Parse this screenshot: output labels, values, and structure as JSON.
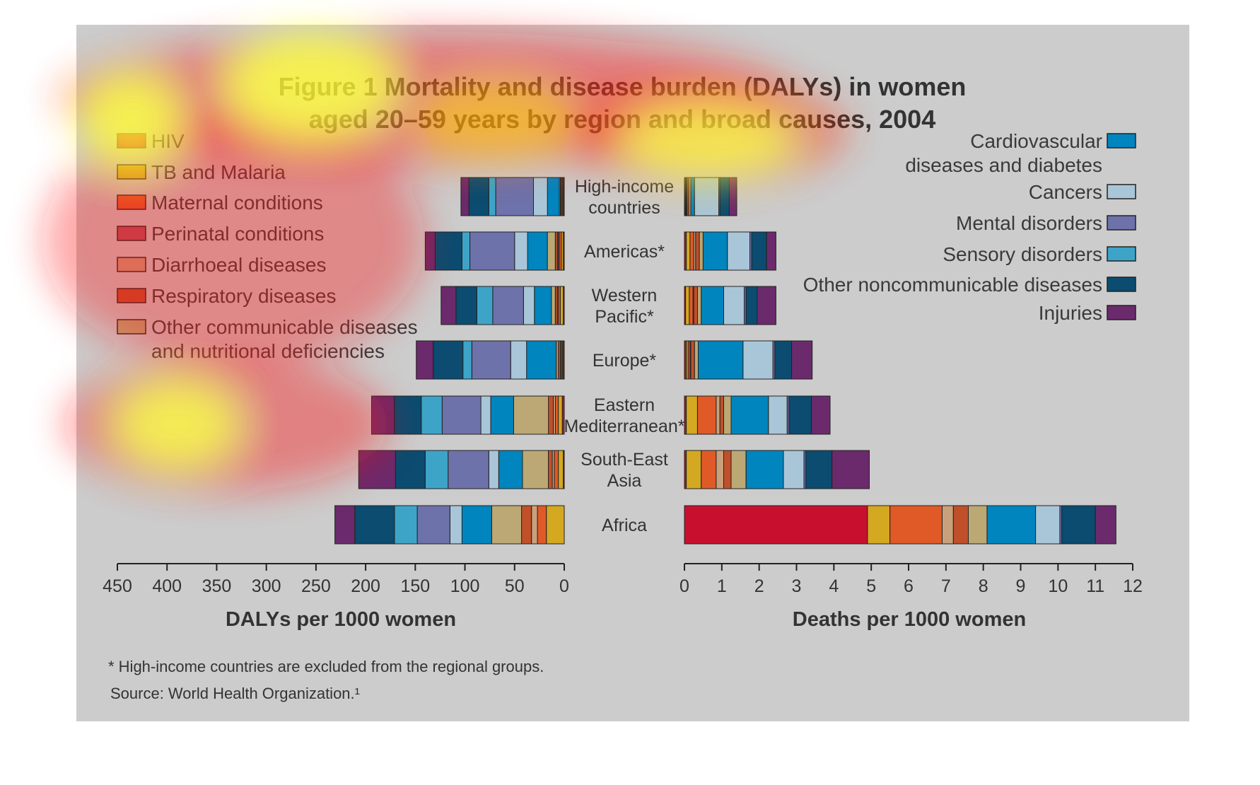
{
  "title": {
    "line1": "Figure 1 Mortality and disease burden (DALYs) in women",
    "line2": "aged 20–59 years by region and broad causes, 2004"
  },
  "legend_left": [
    {
      "label": "HIV",
      "color": "#c8102e"
    },
    {
      "label": "TB and Malaria",
      "color": "#d4a820"
    },
    {
      "label": "Maternal conditions",
      "color": "#e05a28"
    },
    {
      "label": "Perinatal conditions",
      "color": "#b5505e"
    },
    {
      "label": "Diarrhoeal diseases",
      "color": "#c9a07c"
    },
    {
      "label": "Respiratory diseases",
      "color": "#c0502a"
    },
    {
      "label": "Other communicable diseases",
      "label2": "and nutritional deficiencies",
      "color": "#bca874"
    }
  ],
  "legend_right": [
    {
      "label": "Cardiovascular",
      "label2": "diseases and diabetes",
      "color": "#0085bf"
    },
    {
      "label": "Cancers",
      "color": "#a9c6d8"
    },
    {
      "label": "Mental disorders",
      "color": "#6e72aa"
    },
    {
      "label": "Sensory disorders",
      "color": "#3da4c8"
    },
    {
      "label": "Other noncommunicable diseases",
      "color": "#0b4c70"
    },
    {
      "label": "Injuries",
      "color": "#6b2a6c"
    }
  ],
  "regions": [
    {
      "line1": "High-income",
      "line2": "countries"
    },
    {
      "line1": "Americas*",
      "line2": ""
    },
    {
      "line1": "Western",
      "line2": "Pacific*"
    },
    {
      "line1": "Europe*",
      "line2": ""
    },
    {
      "line1": "Eastern",
      "line2": "Mediterranean*"
    },
    {
      "line1": "South-East",
      "line2": "Asia"
    },
    {
      "line1": "Africa",
      "line2": ""
    }
  ],
  "axes": {
    "left_title": "DALYs per 1000 women",
    "right_title": "Deaths per 1000 women",
    "left_ticks": [
      "450",
      "400",
      "350",
      "300",
      "250",
      "200",
      "150",
      "100",
      "50",
      "0"
    ],
    "right_ticks": [
      "0",
      "1",
      "2",
      "3",
      "4",
      "5",
      "6",
      "7",
      "8",
      "9",
      "10",
      "11",
      "12"
    ]
  },
  "notes": {
    "footnote": "* High-income countries are excluded from the regional groups.",
    "source": "Source: World Health Organization.¹"
  },
  "chart_data": {
    "type": "bar",
    "orientation": "horizontal",
    "stacked": true,
    "categories": [
      "High-income countries",
      "Americas*",
      "Western Pacific*",
      "Europe*",
      "Eastern Mediterranean*",
      "South-East Asia",
      "Africa"
    ],
    "causes": [
      "HIV",
      "TB and Malaria",
      "Maternal conditions",
      "Perinatal conditions",
      "Diarrhoeal diseases",
      "Respiratory diseases",
      "Other communicable diseases and nutritional deficiencies",
      "Cardiovascular diseases and diabetes",
      "Cancers",
      "Mental disorders",
      "Sensory disorders",
      "Other noncommunicable diseases",
      "Injuries"
    ],
    "dalys": {
      "xlabel": "DALYs per 1000 women",
      "xlim": [
        0,
        450
      ],
      "series": [
        {
          "name": "HIV",
          "values": [
            1,
            1,
            1,
            1,
            2,
            1,
            0
          ]
        },
        {
          "name": "TB and Malaria",
          "values": [
            1,
            2,
            3,
            1,
            4,
            5,
            18
          ]
        },
        {
          "name": "Maternal conditions",
          "values": [
            1,
            2,
            2,
            1,
            3,
            4,
            9
          ]
        },
        {
          "name": "Perinatal conditions",
          "values": [
            0,
            1,
            0,
            0,
            0,
            0,
            0
          ]
        },
        {
          "name": "Diarrhoeal diseases",
          "values": [
            0,
            1,
            1,
            1,
            2,
            2,
            6
          ]
        },
        {
          "name": "Respiratory diseases",
          "values": [
            1,
            2,
            2,
            2,
            5,
            4,
            10
          ]
        },
        {
          "name": "Other communicable diseases and nutritional deficiencies",
          "values": [
            1,
            8,
            4,
            2,
            35,
            26,
            30
          ]
        },
        {
          "name": "Cardiovascular diseases and diabetes",
          "values": [
            12,
            20,
            17,
            30,
            23,
            24,
            30
          ]
        },
        {
          "name": "Cancers",
          "values": [
            14,
            13,
            11,
            16,
            10,
            10,
            12
          ]
        },
        {
          "name": "Mental disorders",
          "values": [
            38,
            45,
            31,
            39,
            39,
            41,
            33
          ]
        },
        {
          "name": "Sensory disorders",
          "values": [
            7,
            8,
            16,
            9,
            21,
            23,
            23
          ]
        },
        {
          "name": "Other noncommunicable diseases",
          "values": [
            20,
            27,
            21,
            30,
            27,
            30,
            40
          ]
        },
        {
          "name": "Injuries",
          "values": [
            8,
            10,
            15,
            17,
            23,
            37,
            20
          ]
        }
      ]
    },
    "deaths": {
      "xlabel": "Deaths per 1000 women",
      "xlim": [
        0,
        12
      ],
      "series": [
        {
          "name": "HIV",
          "values": [
            0.02,
            0.05,
            0.03,
            0.05,
            0.05,
            0.05,
            4.9
          ]
        },
        {
          "name": "TB and Malaria",
          "values": [
            0.02,
            0.1,
            0.1,
            0.05,
            0.3,
            0.4,
            0.6
          ]
        },
        {
          "name": "Maternal conditions",
          "values": [
            0.02,
            0.1,
            0.1,
            0.05,
            0.5,
            0.4,
            1.4
          ]
        },
        {
          "name": "Perinatal conditions",
          "values": [
            0.0,
            0.0,
            0.0,
            0.0,
            0.0,
            0.0,
            0.0
          ]
        },
        {
          "name": "Diarrhoeal diseases",
          "values": [
            0.01,
            0.05,
            0.02,
            0.02,
            0.1,
            0.2,
            0.3
          ]
        },
        {
          "name": "Respiratory diseases",
          "values": [
            0.05,
            0.1,
            0.1,
            0.1,
            0.1,
            0.2,
            0.4
          ]
        },
        {
          "name": "Other communicable diseases and nutritional deficiencies",
          "values": [
            0.05,
            0.1,
            0.1,
            0.1,
            0.2,
            0.4,
            0.5
          ]
        },
        {
          "name": "Cardiovascular diseases and diabetes",
          "values": [
            0.1,
            0.65,
            0.6,
            1.2,
            1.0,
            1.0,
            1.3
          ]
        },
        {
          "name": "Cancers",
          "values": [
            0.65,
            0.6,
            0.55,
            0.8,
            0.5,
            0.55,
            0.65
          ]
        },
        {
          "name": "Mental disorders",
          "values": [
            0.03,
            0.05,
            0.05,
            0.05,
            0.05,
            0.05,
            0.05
          ]
        },
        {
          "name": "Sensory disorders",
          "values": [
            0.0,
            0.0,
            0.0,
            0.0,
            0.0,
            0.0,
            0.0
          ]
        },
        {
          "name": "Other noncommunicable diseases",
          "values": [
            0.25,
            0.4,
            0.3,
            0.45,
            0.6,
            0.7,
            0.9
          ]
        },
        {
          "name": "Injuries",
          "values": [
            0.2,
            0.25,
            0.5,
            0.55,
            0.5,
            1.0,
            0.55
          ]
        }
      ]
    }
  }
}
